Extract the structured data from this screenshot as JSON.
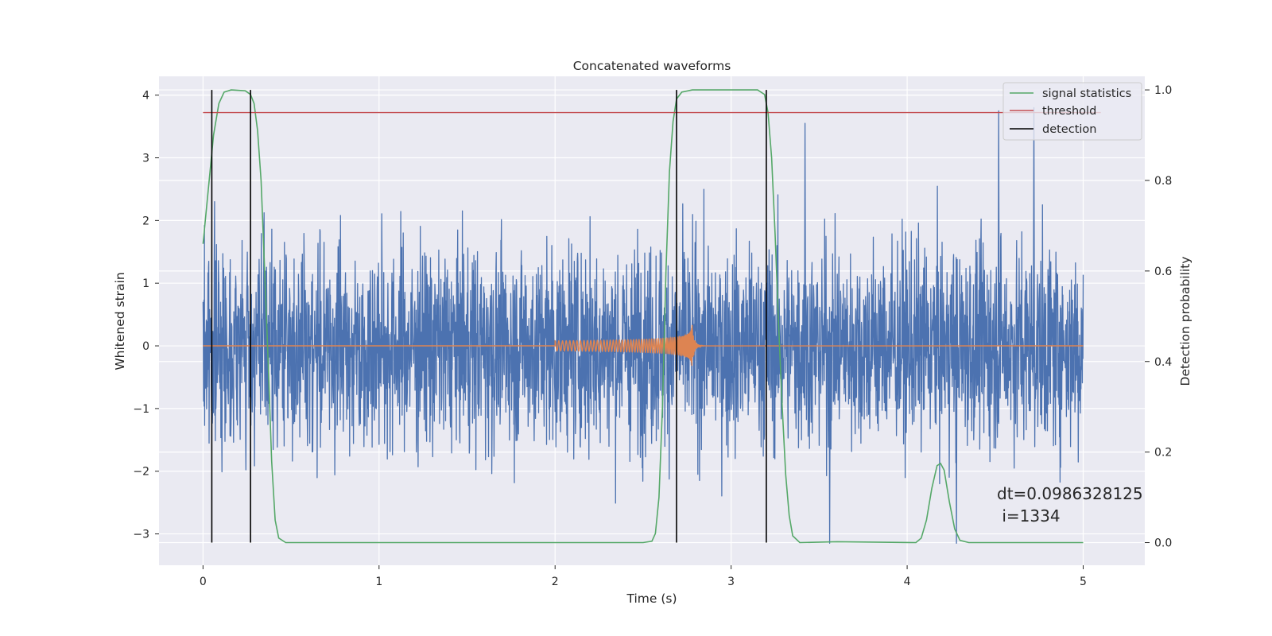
{
  "chart_data": {
    "type": "line",
    "title": "Concatenated waveforms",
    "xlabel": "Time (s)",
    "ylabel_left": "Whitened strain",
    "ylabel_right": "Detection probability",
    "xlim": [
      -0.25,
      5.35
    ],
    "ylim_left": [
      -3.5,
      4.3
    ],
    "ylim_right": [
      -0.05,
      1.03
    ],
    "x_ticks": [
      0,
      1,
      2,
      3,
      4,
      5
    ],
    "x_tick_labels": [
      "0",
      "1",
      "2",
      "3",
      "4",
      "5"
    ],
    "y_left_ticks": [
      -3,
      -2,
      -1,
      0,
      1,
      2,
      3,
      4
    ],
    "y_left_tick_labels": [
      "−3",
      "−2",
      "−1",
      "0",
      "1",
      "2",
      "3",
      "4"
    ],
    "y_right_ticks": [
      0.0,
      0.2,
      0.4,
      0.6,
      0.8,
      1.0
    ],
    "y_right_tick_labels": [
      "0.0",
      "0.2",
      "0.4",
      "0.6",
      "0.8",
      "1.0"
    ],
    "grid": true,
    "legend_position": "top-right",
    "colors": {
      "strain": "#4c72b0",
      "waveform": "#dd8452",
      "signal_statistics": "#55a868",
      "threshold": "#c44e52",
      "detection": "#000000",
      "background": "#eaeaf2",
      "grid": "#ffffff"
    },
    "series": [
      {
        "name": "",
        "axis": "left",
        "kind": "noise",
        "x_range": [
          0,
          5
        ],
        "typical_amplitude": 1.1,
        "peak_values": [
          {
            "x": 3.42,
            "y": 3.55
          },
          {
            "x": 4.52,
            "y": 3.75
          },
          {
            "x": 4.72,
            "y": 3.8
          },
          {
            "x": 3.56,
            "y": -3.15
          },
          {
            "x": 4.28,
            "y": -3.15
          }
        ]
      },
      {
        "name": "",
        "axis": "left",
        "kind": "chirp",
        "x_range": [
          0,
          5
        ],
        "chirp_start": 2.0,
        "chirp_merger": 2.78,
        "start_amplitude": 0.08,
        "peak_amplitude": 0.48
      },
      {
        "name": "signal statistics",
        "axis": "right",
        "points": [
          [
            0.0,
            0.66
          ],
          [
            0.03,
            0.78
          ],
          [
            0.06,
            0.9
          ],
          [
            0.09,
            0.97
          ],
          [
            0.12,
            0.995
          ],
          [
            0.16,
            1.0
          ],
          [
            0.24,
            0.998
          ],
          [
            0.27,
            0.99
          ],
          [
            0.29,
            0.97
          ],
          [
            0.31,
            0.91
          ],
          [
            0.33,
            0.8
          ],
          [
            0.35,
            0.6
          ],
          [
            0.37,
            0.4
          ],
          [
            0.39,
            0.18
          ],
          [
            0.41,
            0.05
          ],
          [
            0.43,
            0.01
          ],
          [
            0.47,
            0.0
          ],
          [
            2.5,
            0.0
          ],
          [
            2.55,
            0.003
          ],
          [
            2.57,
            0.02
          ],
          [
            2.59,
            0.1
          ],
          [
            2.61,
            0.3
          ],
          [
            2.63,
            0.6
          ],
          [
            2.65,
            0.82
          ],
          [
            2.67,
            0.93
          ],
          [
            2.69,
            0.98
          ],
          [
            2.72,
            0.995
          ],
          [
            2.78,
            1.0
          ],
          [
            3.15,
            1.0
          ],
          [
            3.19,
            0.99
          ],
          [
            3.21,
            0.95
          ],
          [
            3.23,
            0.85
          ],
          [
            3.25,
            0.68
          ],
          [
            3.27,
            0.48
          ],
          [
            3.29,
            0.3
          ],
          [
            3.31,
            0.15
          ],
          [
            3.33,
            0.06
          ],
          [
            3.35,
            0.015
          ],
          [
            3.39,
            0.0
          ],
          [
            3.6,
            0.002
          ],
          [
            4.05,
            0.0
          ],
          [
            4.08,
            0.01
          ],
          [
            4.11,
            0.05
          ],
          [
            4.14,
            0.12
          ],
          [
            4.17,
            0.17
          ],
          [
            4.19,
            0.175
          ],
          [
            4.21,
            0.16
          ],
          [
            4.24,
            0.09
          ],
          [
            4.27,
            0.03
          ],
          [
            4.3,
            0.005
          ],
          [
            4.35,
            0.0
          ],
          [
            5.0,
            0.0
          ]
        ]
      },
      {
        "name": "threshold",
        "axis": "right",
        "points": [
          [
            0.0,
            0.95
          ],
          [
            5.1,
            0.95
          ]
        ]
      },
      {
        "name": "detection",
        "axis": "right",
        "vlines": [
          0.05,
          0.27,
          2.69,
          3.2
        ],
        "ymin": 0.0,
        "ymax": 1.0
      }
    ],
    "annotations": [
      "dt=0.0986328125",
      " i=1334"
    ]
  }
}
